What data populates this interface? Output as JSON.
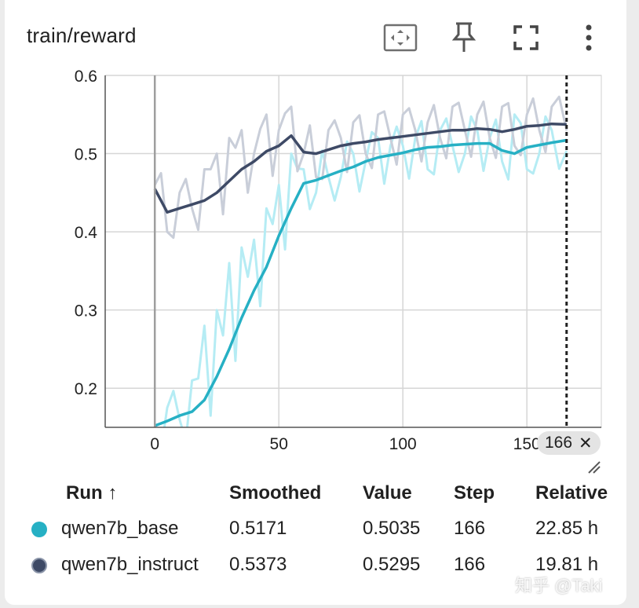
{
  "card": {
    "title": "train/reward"
  },
  "toolbar": {
    "fit_icon": "fit-domain-icon",
    "pin_icon": "pin-icon",
    "fullscreen_icon": "fullscreen-icon",
    "more_icon": "more-vert-icon"
  },
  "chart_data": {
    "type": "line",
    "title": "train/reward",
    "xlabel": "",
    "ylabel": "",
    "xlim": [
      -20,
      180
    ],
    "ylim": [
      0.15,
      0.6
    ],
    "x_ticks": [
      "0",
      "50",
      "100",
      "150"
    ],
    "y_ticks": [
      "0.2",
      "0.3",
      "0.4",
      "0.5",
      "0.6"
    ],
    "grid": true,
    "cursor_step": 166,
    "series": [
      {
        "name": "qwen7b_base",
        "color": "#26b0c4",
        "raw_color": "#b5ecf4",
        "x": [
          0,
          5,
          10,
          15,
          20,
          25,
          30,
          35,
          40,
          45,
          50,
          55,
          60,
          65,
          70,
          75,
          80,
          85,
          90,
          95,
          100,
          105,
          110,
          115,
          120,
          125,
          130,
          135,
          140,
          145,
          150,
          155,
          160,
          166
        ],
        "smoothed": [
          0.152,
          0.158,
          0.165,
          0.17,
          0.185,
          0.215,
          0.25,
          0.29,
          0.325,
          0.355,
          0.395,
          0.43,
          0.462,
          0.466,
          0.472,
          0.478,
          0.483,
          0.49,
          0.495,
          0.498,
          0.501,
          0.505,
          0.508,
          0.509,
          0.511,
          0.512,
          0.513,
          0.513,
          0.504,
          0.5,
          0.508,
          0.511,
          0.514,
          0.5171
        ],
        "raw": [
          0.15,
          0.175,
          0.16,
          0.21,
          0.28,
          0.3,
          0.36,
          0.38,
          0.39,
          0.43,
          0.46,
          0.5,
          0.48,
          0.45,
          0.47,
          0.47,
          0.5,
          0.49,
          0.52,
          0.51,
          0.51,
          0.52,
          0.48,
          0.53,
          0.51,
          0.5,
          0.53,
          0.52,
          0.49,
          0.55,
          0.48,
          0.5,
          0.53,
          0.5035
        ]
      },
      {
        "name": "qwen7b_instruct",
        "color": "#3e4a66",
        "raw_color": "#c9ced9",
        "x": [
          0,
          5,
          10,
          15,
          20,
          25,
          30,
          35,
          40,
          45,
          50,
          55,
          60,
          65,
          70,
          75,
          80,
          85,
          90,
          95,
          100,
          105,
          110,
          115,
          120,
          125,
          130,
          135,
          140,
          145,
          150,
          155,
          160,
          166
        ],
        "smoothed": [
          0.455,
          0.425,
          0.43,
          0.435,
          0.44,
          0.45,
          0.465,
          0.48,
          0.49,
          0.503,
          0.51,
          0.523,
          0.502,
          0.5,
          0.505,
          0.51,
          0.513,
          0.515,
          0.518,
          0.52,
          0.522,
          0.524,
          0.526,
          0.528,
          0.53,
          0.53,
          0.532,
          0.531,
          0.528,
          0.531,
          0.535,
          0.536,
          0.538,
          0.5373
        ],
        "raw": [
          0.46,
          0.4,
          0.45,
          0.43,
          0.48,
          0.5,
          0.52,
          0.53,
          0.5,
          0.55,
          0.53,
          0.56,
          0.5,
          0.47,
          0.53,
          0.52,
          0.54,
          0.5,
          0.55,
          0.52,
          0.55,
          0.53,
          0.54,
          0.52,
          0.56,
          0.53,
          0.55,
          0.52,
          0.56,
          0.51,
          0.55,
          0.53,
          0.56,
          0.5295
        ]
      }
    ]
  },
  "tooltip": {
    "step_label": "166",
    "close_glyph": "✕"
  },
  "table": {
    "headers": {
      "run": "Run ↑",
      "smoothed": "Smoothed",
      "value": "Value",
      "step": "Step",
      "relative": "Relative"
    },
    "rows": [
      {
        "color": "#26b0c4",
        "run": "qwen7b_base",
        "smoothed": "0.5171",
        "value": "0.5035",
        "step": "166",
        "relative": "22.85 h"
      },
      {
        "color": "#3e4a66",
        "run": "qwen7b_instruct",
        "smoothed": "0.5373",
        "value": "0.5295",
        "step": "166",
        "relative": "19.81 h"
      }
    ]
  },
  "watermark": "知乎 @Taki"
}
